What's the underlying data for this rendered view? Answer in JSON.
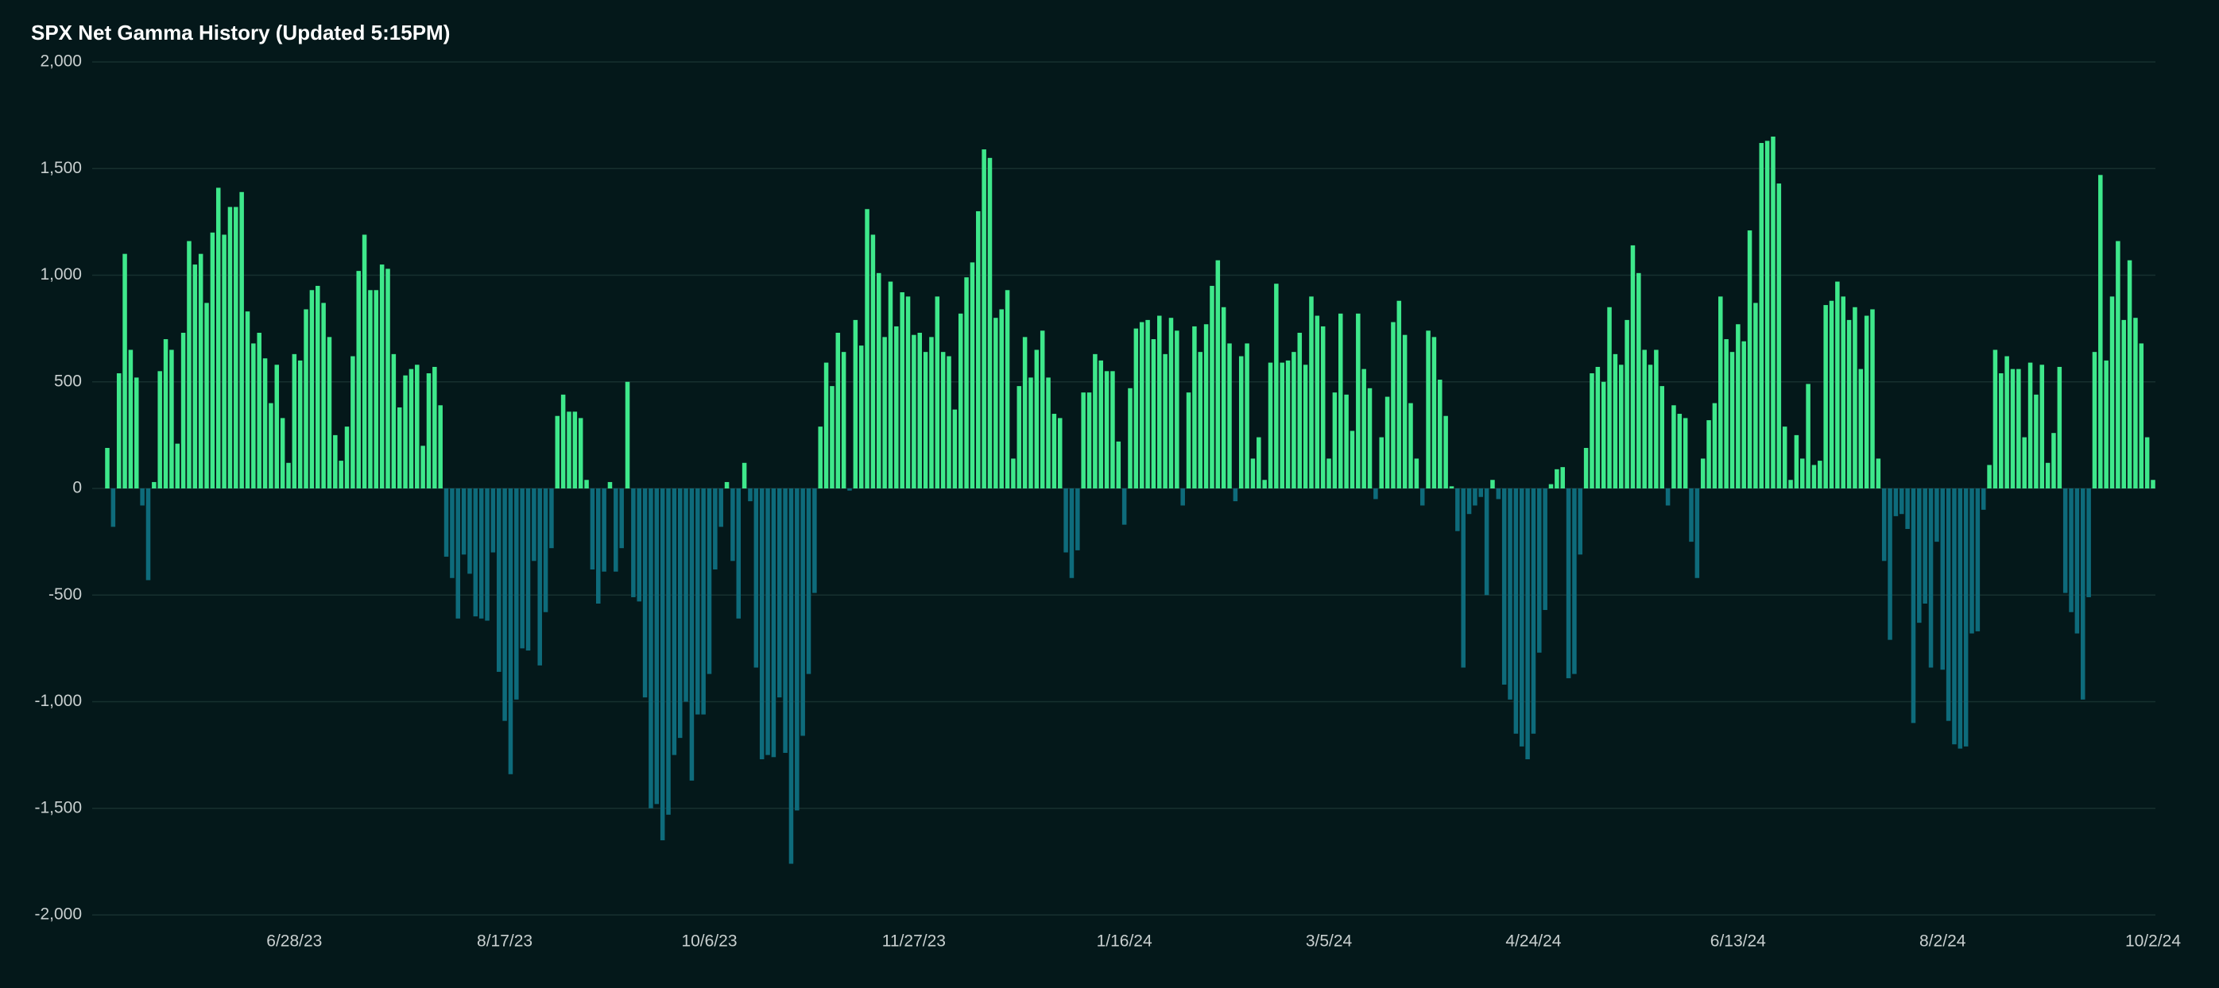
{
  "chart_data": {
    "type": "bar",
    "title": "SPX Net Gamma History (Updated 5:15PM)",
    "color": "#3ee88b",
    "negative_color": "#0e6b7b",
    "grid": true,
    "ylim": [
      -2000,
      2000
    ],
    "yticks": [
      {
        "value": -2000,
        "label": "-2,000"
      },
      {
        "value": -1500,
        "label": "-1,500"
      },
      {
        "value": -1000,
        "label": "-1,000"
      },
      -500,
      0,
      500,
      {
        "value": 1000,
        "label": "1,000"
      },
      {
        "value": 1500,
        "label": "1,500"
      },
      {
        "value": 2000,
        "label": "2,000"
      }
    ],
    "categories": [
      null,
      null,
      null,
      null,
      null,
      null,
      null,
      null,
      null,
      null,
      null,
      null,
      null,
      null,
      null,
      null,
      null,
      null,
      null,
      null,
      null,
      null,
      null,
      null,
      null,
      null,
      null,
      null,
      null,
      null,
      null,
      null,
      "6/28/23",
      null,
      null,
      null,
      null,
      null,
      null,
      null,
      null,
      null,
      null,
      null,
      null,
      null,
      null,
      null,
      null,
      null,
      null,
      null,
      null,
      null,
      null,
      null,
      null,
      null,
      null,
      null,
      null,
      null,
      null,
      null,
      null,
      null,
      null,
      null,
      "8/17/23",
      null,
      null,
      null,
      null,
      null,
      null,
      null,
      null,
      null,
      null,
      null,
      null,
      null,
      null,
      null,
      null,
      null,
      null,
      null,
      null,
      null,
      null,
      null,
      null,
      null,
      null,
      null,
      null,
      null,
      null,
      null,
      null,
      null,
      null,
      "10/6/23",
      null,
      null,
      null,
      null,
      null,
      null,
      null,
      null,
      null,
      null,
      null,
      null,
      null,
      null,
      null,
      null,
      null,
      null,
      null,
      null,
      null,
      null,
      null,
      null,
      null,
      null,
      null,
      null,
      null,
      null,
      null,
      null,
      null,
      null,
      "11/27/23",
      null,
      null,
      null,
      null,
      null,
      null,
      null,
      null,
      null,
      null,
      null,
      null,
      null,
      null,
      null,
      null,
      null,
      null,
      null,
      null,
      null,
      null,
      null,
      null,
      null,
      null,
      null,
      null,
      null,
      null,
      null,
      null,
      null,
      null,
      null,
      "1/16/24",
      null,
      null,
      null,
      null,
      null,
      null,
      null,
      null,
      null,
      null,
      null,
      null,
      null,
      null,
      null,
      null,
      null,
      null,
      null,
      null,
      null,
      null,
      null,
      null,
      null,
      null,
      null,
      null,
      null,
      null,
      null,
      null,
      null,
      null,
      "3/5/24",
      null,
      null,
      null,
      null,
      null,
      null,
      null,
      null,
      null,
      null,
      null,
      null,
      null,
      null,
      null,
      null,
      null,
      null,
      null,
      null,
      null,
      null,
      null,
      null,
      null,
      null,
      null,
      null,
      null,
      null,
      null,
      null,
      null,
      null,
      "4/24/24",
      null,
      null,
      null,
      null,
      null,
      null,
      null,
      null,
      null,
      null,
      null,
      null,
      null,
      null,
      null,
      null,
      null,
      null,
      null,
      null,
      null,
      null,
      null,
      null,
      null,
      null,
      null,
      null,
      null,
      null,
      null,
      null,
      null,
      null,
      "6/13/24",
      null,
      null,
      null,
      null,
      null,
      null,
      null,
      null,
      null,
      null,
      null,
      null,
      null,
      null,
      null,
      null,
      null,
      null,
      null,
      null,
      null,
      null,
      null,
      null,
      null,
      null,
      null,
      null,
      null,
      null,
      null,
      null,
      null,
      null,
      "8/2/24",
      null,
      null,
      null,
      null,
      null,
      null,
      null,
      null,
      null,
      null,
      null,
      null,
      null,
      null,
      null,
      null,
      null,
      null,
      null,
      null,
      null,
      null,
      null,
      null,
      null,
      null,
      null,
      null,
      null,
      null,
      null,
      null,
      null,
      null,
      null,
      "10/2/24"
    ],
    "values": [
      190,
      -180,
      540,
      1100,
      650,
      520,
      -80,
      -430,
      30,
      550,
      700,
      650,
      210,
      730,
      1160,
      1050,
      1100,
      870,
      1200,
      1410,
      1190,
      1320,
      1320,
      1390,
      830,
      680,
      730,
      610,
      400,
      580,
      330,
      120,
      630,
      600,
      840,
      930,
      950,
      870,
      710,
      250,
      130,
      290,
      620,
      1020,
      1190,
      930,
      930,
      1050,
      1030,
      630,
      380,
      530,
      560,
      580,
      200,
      540,
      570,
      390,
      -320,
      -420,
      -610,
      -310,
      -400,
      -600,
      -610,
      -620,
      -300,
      -860,
      -1090,
      -1340,
      -990,
      -750,
      -760,
      -340,
      -830,
      -580,
      -280,
      340,
      440,
      360,
      360,
      330,
      40,
      -380,
      -540,
      -390,
      30,
      -390,
      -280,
      500,
      -510,
      -530,
      -980,
      -1500,
      -1480,
      -1650,
      -1530,
      -1250,
      -1170,
      -1000,
      -1370,
      -1060,
      -1060,
      -870,
      -380,
      -180,
      30,
      -340,
      -610,
      120,
      -60,
      -840,
      -1270,
      -1250,
      -1260,
      -980,
      -1240,
      -1760,
      -1510,
      -1160,
      -870,
      -490,
      290,
      590,
      480,
      730,
      640,
      -10,
      790,
      670,
      1310,
      1190,
      1010,
      710,
      970,
      760,
      920,
      900,
      720,
      730,
      640,
      710,
      900,
      640,
      620,
      370,
      820,
      990,
      1060,
      1300,
      1590,
      1550,
      800,
      840,
      930,
      140,
      480,
      710,
      520,
      650,
      740,
      520,
      350,
      330,
      -300,
      -420,
      -290,
      450,
      450,
      630,
      600,
      550,
      550,
      220,
      -170,
      470,
      750,
      780,
      790,
      700,
      810,
      630,
      800,
      740,
      -80,
      450,
      760,
      640,
      770,
      950,
      1070,
      850,
      680,
      -60,
      620,
      680,
      140,
      240,
      40,
      590,
      960,
      590,
      600,
      640,
      730,
      580,
      900,
      810,
      760,
      140,
      450,
      820,
      440,
      270,
      820,
      560,
      470,
      -50,
      240,
      430,
      780,
      880,
      720,
      400,
      140,
      -80,
      740,
      710,
      510,
      340,
      10,
      -200,
      -840,
      -120,
      -80,
      -40,
      -500,
      40,
      -50,
      -920,
      -990,
      -1150,
      -1210,
      -1270,
      -1150,
      -770,
      -570,
      20,
      90,
      100,
      -890,
      -870,
      -310,
      190,
      540,
      570,
      500,
      850,
      630,
      580,
      790,
      1140,
      1010,
      650,
      580,
      650,
      480,
      -80,
      390,
      350,
      330,
      -250,
      -420,
      140,
      320,
      400,
      900,
      700,
      640,
      770,
      690,
      1210,
      870,
      1620,
      1630,
      1650,
      1430,
      290,
      40,
      250,
      140,
      490,
      110,
      130,
      860,
      880,
      970,
      900,
      790,
      850,
      560,
      810,
      840,
      140,
      -340,
      -710,
      -130,
      -120,
      -190,
      -1100,
      -630,
      -540,
      -840,
      -250,
      -850,
      -1090,
      -1200,
      -1220,
      -1210,
      -680,
      -670,
      -100,
      110,
      650,
      540,
      620,
      560,
      560,
      240,
      590,
      440,
      580,
      120,
      260,
      570,
      -490,
      -580,
      -680,
      -990,
      -510,
      640,
      1470,
      600,
      900,
      1160,
      790,
      1070,
      800,
      680,
      240,
      40
    ]
  }
}
